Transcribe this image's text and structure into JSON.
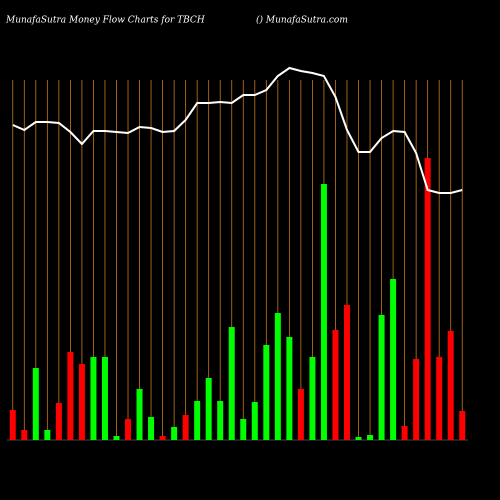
{
  "chart_data": {
    "type": "bar",
    "title": "MunafaSutra  Money Flow  Charts for TBCH",
    "subtitle": "() MunafaSutra.com",
    "categories": [
      null,
      null,
      null,
      null,
      null,
      null,
      null,
      null,
      null,
      null,
      null,
      null,
      null,
      null,
      null,
      null,
      null,
      null,
      null,
      null,
      null,
      null,
      null,
      null,
      null,
      null,
      null,
      null,
      null,
      null,
      null,
      null,
      null,
      null,
      null,
      null,
      null,
      null,
      null,
      null
    ],
    "values": [
      30,
      10,
      72,
      10,
      37,
      88,
      76,
      83,
      83,
      4,
      21,
      51,
      23,
      4,
      13,
      25,
      39,
      62,
      39,
      113,
      21,
      38,
      95,
      127,
      103,
      51,
      83,
      256,
      110,
      135,
      3,
      5,
      125,
      161,
      14,
      81,
      282,
      83,
      109,
      29
    ],
    "colors": [
      "#ff0000",
      "#ff0000",
      "#00ff00",
      "#00ff00",
      "#ff0000",
      "#ff0000",
      "#ff0000",
      "#00ff00",
      "#00ff00",
      "#00ff00",
      "#ff0000",
      "#00ff00",
      "#00ff00",
      "#ff0000",
      "#00ff00",
      "#ff0000",
      "#00ff00",
      "#00ff00",
      "#00ff00",
      "#00ff00",
      "#00ff00",
      "#00ff00",
      "#00ff00",
      "#00ff00",
      "#00ff00",
      "#ff0000",
      "#00ff00",
      "#00ff00",
      "#ff0000",
      "#ff0000",
      "#00ff00",
      "#00ff00",
      "#00ff00",
      "#00ff00",
      "#ff0000",
      "#ff0000",
      "#ff0000",
      "#ff0000",
      "#ff0000",
      "#ff0000"
    ],
    "line": {
      "color": "#ffffff",
      "values": [
        315,
        310,
        318,
        318,
        317,
        308,
        296,
        309,
        309,
        308,
        307,
        313,
        312,
        308,
        309,
        320,
        337,
        337,
        338,
        337,
        345,
        345,
        350,
        364,
        372,
        369,
        367,
        364,
        343,
        310,
        288,
        288,
        302,
        309,
        308,
        287,
        250,
        247,
        247,
        250
      ]
    },
    "ylim": [
      0,
      440
    ],
    "grid_color": "#c8781e"
  }
}
